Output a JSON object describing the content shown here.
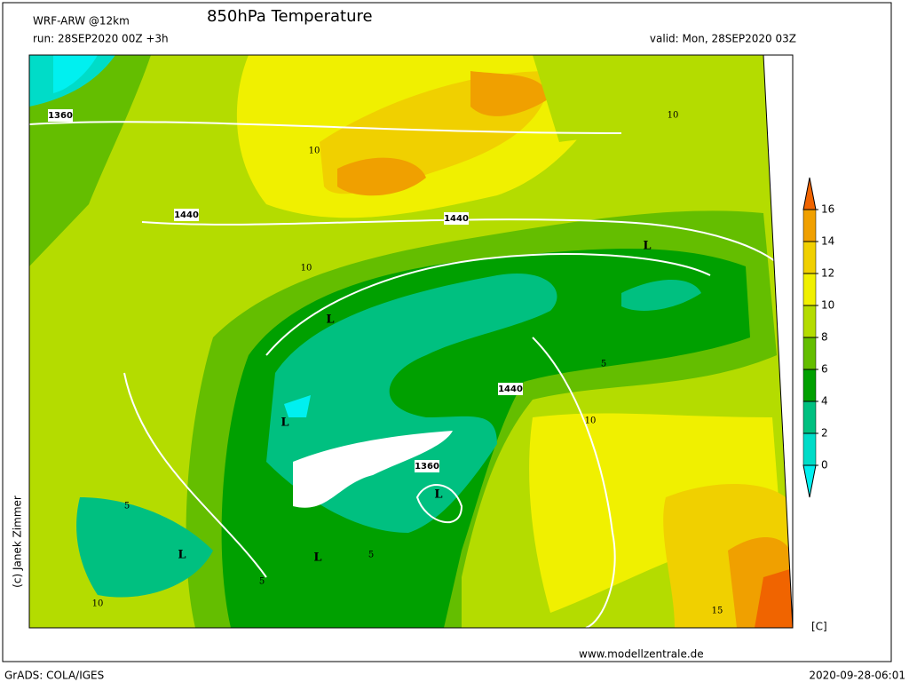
{
  "header": {
    "model": "WRF-ARW @12km",
    "title": "850hPa Temperature",
    "run": "run: 28SEP2020 00Z +3h",
    "valid": "valid: Mon, 28SEP2020 03Z"
  },
  "colorbar": {
    "ticks": [
      0,
      2,
      4,
      6,
      8,
      10,
      12,
      14,
      16
    ],
    "colors": [
      "#00f0f0",
      "#00dcc8",
      "#00c080",
      "#00a000",
      "#64be00",
      "#b4dc00",
      "#f0f000",
      "#f0d000",
      "#f0a000",
      "#f06400"
    ],
    "unit": "[C]"
  },
  "map": {
    "labels": [
      "1360",
      "1440",
      "1440",
      "1440",
      "1360",
      "L",
      "L",
      "L",
      "L",
      "L",
      "L",
      "10",
      "10",
      "10",
      "10",
      "10",
      "5",
      "5",
      "5",
      "5",
      "15"
    ]
  },
  "footer": {
    "credit": "(c) Janek Zimmer",
    "website": "www.modellzentrale.de",
    "software": "GrADS: COLA/IGES",
    "timestamp": "2020-09-28-06:01"
  }
}
